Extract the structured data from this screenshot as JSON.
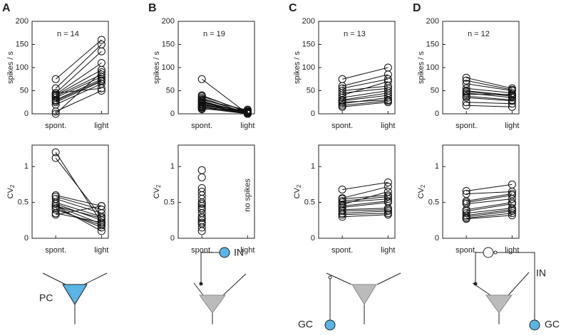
{
  "chart_data": [
    {
      "type": "paired",
      "panel": "A",
      "annotation": "n = 14",
      "ylabel": "spikes / s",
      "categories": [
        "spont.",
        "light"
      ],
      "ylim": [
        0,
        200
      ],
      "yticks": [
        0,
        50,
        100,
        150,
        200
      ],
      "values": [
        [
          75,
          160
        ],
        [
          55,
          150
        ],
        [
          45,
          135
        ],
        [
          42,
          110
        ],
        [
          40,
          95
        ],
        [
          38,
          85
        ],
        [
          35,
          80
        ],
        [
          30,
          75
        ],
        [
          28,
          72
        ],
        [
          25,
          70
        ],
        [
          20,
          65
        ],
        [
          45,
          55
        ],
        [
          5,
          50
        ],
        [
          0,
          90
        ]
      ]
    },
    {
      "type": "paired",
      "ylabel": "CV",
      "ylabel_sub": "2",
      "categories": [
        "spont.",
        "light"
      ],
      "ylim": [
        0,
        1.3
      ],
      "yticks": [
        0,
        0.5,
        1
      ],
      "values": [
        [
          1.2,
          0.22
        ],
        [
          1.12,
          0.3
        ],
        [
          0.6,
          0.45
        ],
        [
          0.58,
          0.4
        ],
        [
          0.55,
          0.35
        ],
        [
          0.5,
          0.3
        ],
        [
          0.48,
          0.25
        ],
        [
          0.45,
          0.2
        ],
        [
          0.45,
          0.28
        ],
        [
          0.42,
          0.15
        ],
        [
          0.4,
          0.18
        ],
        [
          0.35,
          0.22
        ],
        [
          0.33,
          0.45
        ],
        [
          0.45,
          0.1
        ]
      ]
    },
    {
      "type": "paired",
      "panel": "B",
      "annotation": "n = 19",
      "ylabel": "spikes / s",
      "categories": [
        "spont.",
        "light"
      ],
      "ylim": [
        0,
        200
      ],
      "yticks": [
        0,
        50,
        100,
        150,
        200
      ],
      "values": [
        [
          75,
          0
        ],
        [
          40,
          3
        ],
        [
          38,
          5
        ],
        [
          35,
          0
        ],
        [
          32,
          2
        ],
        [
          30,
          8
        ],
        [
          28,
          1
        ],
        [
          27,
          0
        ],
        [
          25,
          4
        ],
        [
          24,
          2
        ],
        [
          22,
          0
        ],
        [
          20,
          6
        ],
        [
          20,
          0
        ],
        [
          18,
          3
        ],
        [
          16,
          1
        ],
        [
          15,
          0
        ],
        [
          14,
          2
        ],
        [
          12,
          0
        ],
        [
          10,
          9
        ]
      ]
    },
    {
      "type": "paired",
      "ylabel": "CV",
      "ylabel_sub": "2",
      "annotation": "no spikes",
      "categories": [
        "spont.",
        "light"
      ],
      "ylim": [
        0,
        1.3
      ],
      "yticks": [
        0,
        0.5,
        1
      ],
      "values": [
        [
          0.95,
          null
        ],
        [
          0.85,
          null
        ],
        [
          0.7,
          null
        ],
        [
          0.65,
          null
        ],
        [
          0.6,
          null
        ],
        [
          0.55,
          null
        ],
        [
          0.5,
          null
        ],
        [
          0.48,
          null
        ],
        [
          0.45,
          null
        ],
        [
          0.42,
          null
        ],
        [
          0.4,
          null
        ],
        [
          0.35,
          null
        ],
        [
          0.3,
          null
        ],
        [
          0.28,
          null
        ],
        [
          0.25,
          null
        ],
        [
          0.22,
          null
        ],
        [
          0.2,
          null
        ],
        [
          0.15,
          null
        ],
        [
          0.1,
          null
        ]
      ]
    },
    {
      "type": "paired",
      "panel": "C",
      "annotation": "n = 13",
      "ylabel": "spikes / s",
      "categories": [
        "spont.",
        "light"
      ],
      "ylim": [
        0,
        200
      ],
      "yticks": [
        0,
        50,
        100,
        150,
        200
      ],
      "values": [
        [
          75,
          100
        ],
        [
          60,
          85
        ],
        [
          55,
          75
        ],
        [
          50,
          60
        ],
        [
          45,
          55
        ],
        [
          40,
          70
        ],
        [
          35,
          50
        ],
        [
          30,
          45
        ],
        [
          28,
          40
        ],
        [
          25,
          30
        ],
        [
          22,
          35
        ],
        [
          18,
          28
        ],
        [
          15,
          25
        ]
      ]
    },
    {
      "type": "paired",
      "ylabel": "CV",
      "ylabel_sub": "2",
      "categories": [
        "spont.",
        "light"
      ],
      "ylim": [
        0,
        1.3
      ],
      "yticks": [
        0,
        0.5,
        1
      ],
      "values": [
        [
          0.68,
          0.78
        ],
        [
          0.56,
          0.72
        ],
        [
          0.55,
          0.6
        ],
        [
          0.52,
          0.58
        ],
        [
          0.5,
          0.55
        ],
        [
          0.47,
          0.65
        ],
        [
          0.45,
          0.52
        ],
        [
          0.43,
          0.5
        ],
        [
          0.4,
          0.42
        ],
        [
          0.38,
          0.4
        ],
        [
          0.35,
          0.38
        ],
        [
          0.33,
          0.35
        ],
        [
          0.3,
          0.33
        ]
      ]
    },
    {
      "type": "paired",
      "panel": "D",
      "annotation": "n = 12",
      "ylabel": "spikes / s",
      "categories": [
        "spont.",
        "light"
      ],
      "ylim": [
        0,
        200
      ],
      "yticks": [
        0,
        50,
        100,
        150,
        200
      ],
      "values": [
        [
          78,
          55
        ],
        [
          72,
          52
        ],
        [
          65,
          50
        ],
        [
          55,
          45
        ],
        [
          50,
          40
        ],
        [
          48,
          38
        ],
        [
          45,
          35
        ],
        [
          42,
          42
        ],
        [
          38,
          30
        ],
        [
          35,
          28
        ],
        [
          25,
          22
        ],
        [
          18,
          15
        ]
      ]
    },
    {
      "type": "paired",
      "ylabel": "CV",
      "ylabel_sub": "2",
      "categories": [
        "spont.",
        "light"
      ],
      "ylim": [
        0,
        1.3
      ],
      "yticks": [
        0,
        0.5,
        1
      ],
      "values": [
        [
          0.66,
          0.75
        ],
        [
          0.62,
          0.65
        ],
        [
          0.52,
          0.62
        ],
        [
          0.5,
          0.6
        ],
        [
          0.48,
          0.55
        ],
        [
          0.4,
          0.5
        ],
        [
          0.38,
          0.48
        ],
        [
          0.35,
          0.42
        ],
        [
          0.32,
          0.4
        ],
        [
          0.3,
          0.38
        ],
        [
          0.28,
          0.35
        ],
        [
          0.27,
          0.32
        ]
      ]
    }
  ],
  "diagram_labels": [
    "PC",
    "IN",
    "GC",
    "IN",
    "GC"
  ]
}
